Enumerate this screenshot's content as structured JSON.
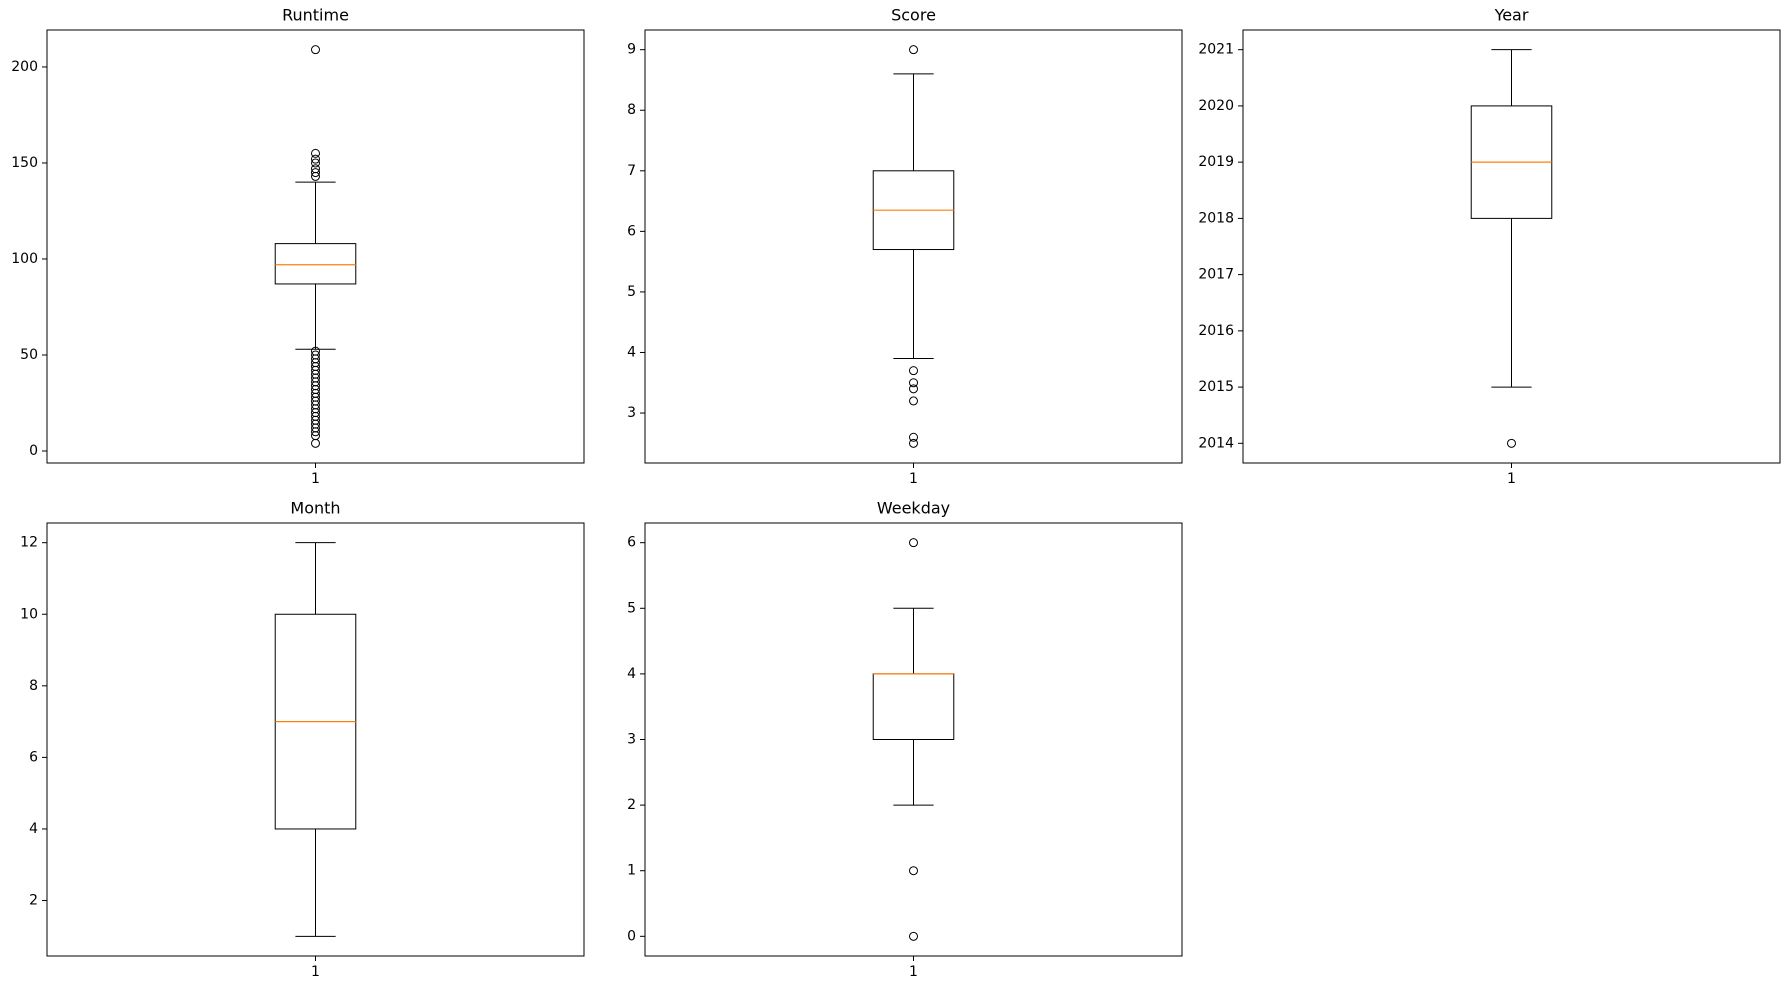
{
  "chart_data": [
    {
      "type": "box",
      "title": "Runtime",
      "categories": [
        "1"
      ],
      "median_color": "#ff7f0e",
      "boxes": [
        {
          "whislo": 53,
          "q1": 87,
          "med": 97,
          "q3": 108,
          "whishi": 140,
          "fliers": [
            143,
            145,
            147,
            150,
            152,
            155,
            209,
            4,
            8,
            10,
            12,
            14,
            16,
            18,
            20,
            22,
            24,
            26,
            28,
            30,
            32,
            34,
            36,
            38,
            40,
            42,
            44,
            46,
            48,
            50,
            52
          ]
        }
      ],
      "ylim": [
        -6.25,
        219.25
      ],
      "yticks": [
        0,
        50,
        100,
        150,
        200
      ]
    },
    {
      "type": "box",
      "title": "Score",
      "categories": [
        "1"
      ],
      "median_color": "#ff7f0e",
      "boxes": [
        {
          "whislo": 3.9,
          "q1": 5.7,
          "med": 6.35,
          "q3": 7.0,
          "whishi": 8.6,
          "fliers": [
            3.7,
            3.5,
            3.4,
            3.2,
            2.6,
            2.5,
            9.0
          ]
        }
      ],
      "ylim": [
        2.175,
        9.325
      ],
      "yticks": [
        3,
        4,
        5,
        6,
        7,
        8,
        9
      ]
    },
    {
      "type": "box",
      "title": "Year",
      "categories": [
        "1"
      ],
      "median_color": "#ff7f0e",
      "boxes": [
        {
          "whislo": 2015,
          "q1": 2018,
          "med": 2019,
          "q3": 2020,
          "whishi": 2021,
          "fliers": [
            2014
          ]
        }
      ],
      "ylim": [
        2013.65,
        2021.35
      ],
      "yticks": [
        2014,
        2015,
        2016,
        2017,
        2018,
        2019,
        2020,
        2021
      ]
    },
    {
      "type": "box",
      "title": "Month",
      "categories": [
        "1"
      ],
      "median_color": "#ff7f0e",
      "boxes": [
        {
          "whislo": 1,
          "q1": 4,
          "med": 7,
          "q3": 10,
          "whishi": 12,
          "fliers": []
        }
      ],
      "ylim": [
        0.45,
        12.55
      ],
      "yticks": [
        2,
        4,
        6,
        8,
        10,
        12
      ]
    },
    {
      "type": "box",
      "title": "Weekday",
      "categories": [
        "1"
      ],
      "median_color": "#ff7f0e",
      "boxes": [
        {
          "whislo": 2,
          "q1": 3,
          "med": 4,
          "q3": 4,
          "whishi": 5,
          "fliers": [
            0,
            1,
            6
          ]
        }
      ],
      "ylim": [
        -0.3,
        6.3
      ],
      "yticks": [
        0,
        1,
        2,
        3,
        4,
        5,
        6
      ]
    }
  ]
}
